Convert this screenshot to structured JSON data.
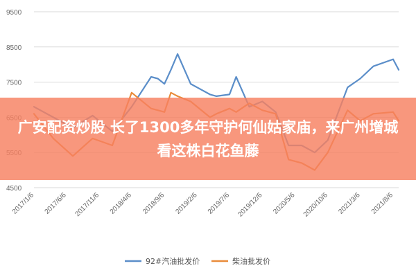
{
  "chart_data": {
    "type": "line",
    "x": [
      "2017/1/6",
      "2017/4/6",
      "2017/7/6",
      "2017/10/6",
      "2018/1/6",
      "2018/4/6",
      "2018/7/6",
      "2018/8/6",
      "2018/9/6",
      "2018/10/6",
      "2018/11/6",
      "2019/1/6",
      "2019/4/6",
      "2019/5/6",
      "2019/7/6",
      "2019/8/6",
      "2019/10/6",
      "2019/12/6",
      "2020/2/6",
      "2020/4/6",
      "2020/6/6",
      "2020/8/6",
      "2020/10/6",
      "2021/1/6",
      "2021/3/6",
      "2021/5/6",
      "2021/8/6",
      "2021/9/1"
    ],
    "series": [
      {
        "name": "92#汽油批发价",
        "color": "#5b8ec9",
        "values": [
          6800,
          6500,
          6200,
          6550,
          6100,
          6800,
          7650,
          7600,
          7450,
          7850,
          8300,
          7450,
          7150,
          7100,
          7150,
          7650,
          6800,
          6950,
          6650,
          5700,
          5700,
          5500,
          5850,
          7350,
          7600,
          7950,
          8150,
          7850
        ]
      },
      {
        "name": "柴油批发价",
        "color": "#e98b3a",
        "values": [
          6600,
          5900,
          5400,
          5900,
          5700,
          7200,
          6750,
          6700,
          6650,
          7200,
          7100,
          6950,
          6500,
          6600,
          6750,
          6650,
          6900,
          6700,
          6600,
          5300,
          5200,
          5000,
          5500,
          6700,
          6400,
          6600,
          6650,
          6400
        ]
      }
    ],
    "x_ticks": [
      "2017/1/6",
      "2017/6/6",
      "2017/11/6",
      "2018/4/6",
      "2018/9/6",
      "2019/2/6",
      "2019/7/6",
      "2019/12/6",
      "2020/5/6",
      "2020/10/6",
      "2021/3/6",
      "2021/8/6"
    ],
    "y_ticks": [
      4500,
      5500,
      6500,
      7500,
      8500,
      9500
    ],
    "ylim": [
      4500,
      9500
    ],
    "grid": true,
    "legend": "bottom"
  },
  "overlay": {
    "title": "广安配资炒股 长了1300多年守护何仙姑家庙，来广州增城看这株白花鱼藤"
  }
}
